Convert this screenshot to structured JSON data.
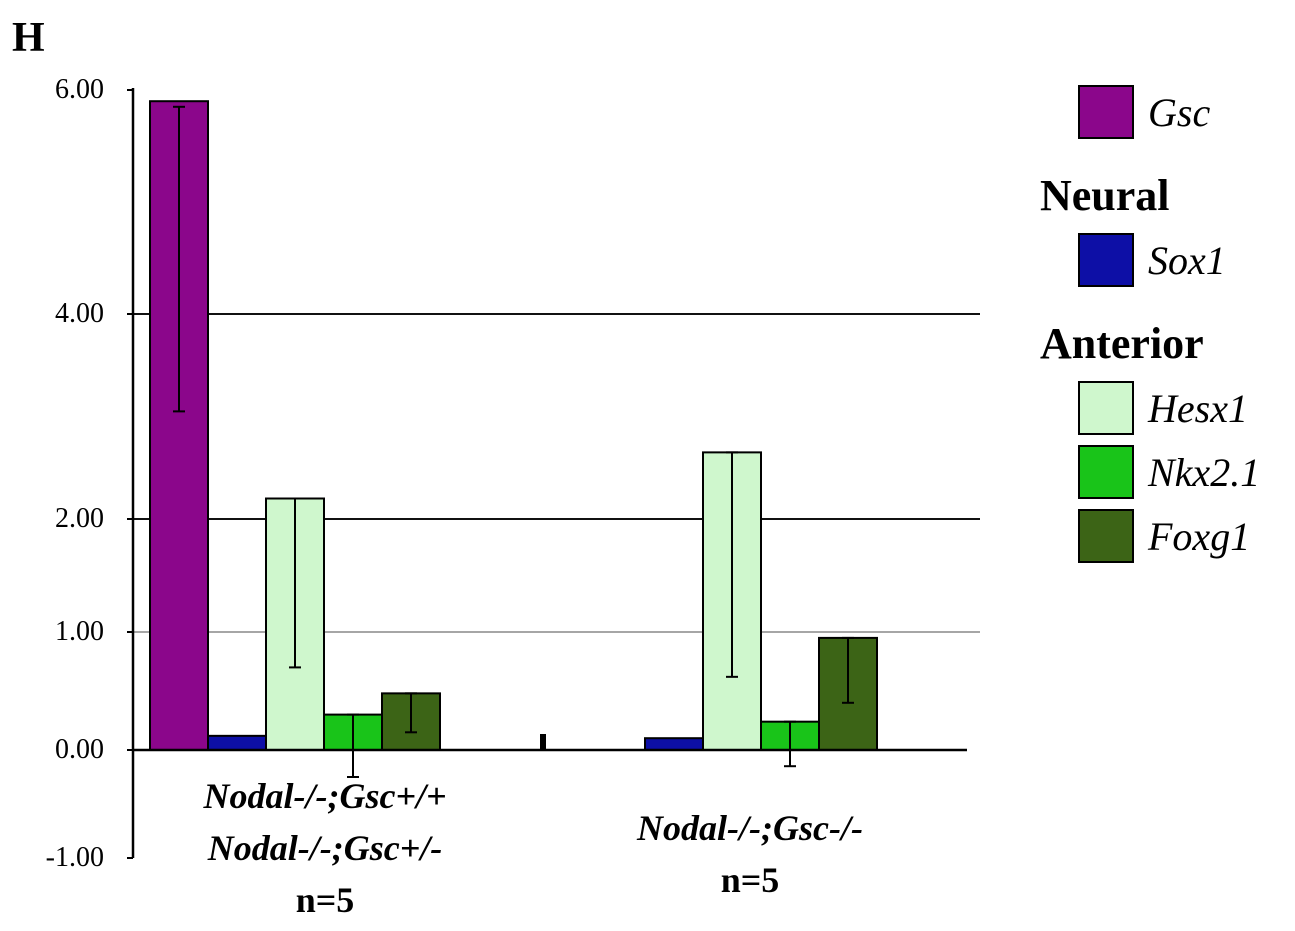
{
  "panel_label": "H",
  "chart_data": {
    "type": "bar",
    "categories": [
      [
        "Nodal-/-;Gsc+/+",
        "Nodal-/-;Gsc+/-",
        "n=5"
      ],
      [
        "Nodal-/-;Gsc-/-",
        "n=5"
      ]
    ],
    "series": [
      {
        "name": "Gsc",
        "color": "#8b068b",
        "values": [
          5.9,
          null
        ],
        "err_low": [
          3.05,
          null
        ],
        "err_high": [
          5.85,
          null
        ]
      },
      {
        "name": "Sox1",
        "color": "#0d0fa6",
        "values": [
          0.12,
          0.1
        ],
        "err_low": [
          null,
          null
        ],
        "err_high": [
          null,
          null
        ]
      },
      {
        "name": "Hesx1",
        "color": "#cff7cd",
        "values": [
          2.2,
          2.65
        ],
        "err_low": [
          0.7,
          0.62
        ],
        "err_high": [
          2.2,
          2.65
        ]
      },
      {
        "name": "Nkx2.1",
        "color": "#19c419",
        "values": [
          0.3,
          0.24
        ],
        "err_low": [
          -0.25,
          -0.15
        ],
        "err_high": [
          0.3,
          0.24
        ]
      },
      {
        "name": "Foxg1",
        "color": "#3c6416",
        "values": [
          0.48,
          0.95
        ],
        "err_low": [
          0.15,
          0.4
        ],
        "err_high": [
          0.48,
          0.95
        ]
      }
    ],
    "y_ticks": [
      {
        "value": -1,
        "label": "-1.00"
      },
      {
        "value": 0,
        "label": "0.00"
      },
      {
        "value": 1,
        "label": "1.00"
      },
      {
        "value": 2,
        "label": "2.00"
      },
      {
        "value": 4,
        "label": "4.00"
      },
      {
        "value": 6,
        "label": "6.00"
      }
    ],
    "gridlines": [
      1,
      2,
      4
    ],
    "ylim": [
      -1,
      6
    ],
    "xlabel": "",
    "ylabel": ""
  },
  "legend": {
    "top_item": "Gsc",
    "groups": [
      {
        "heading": "Neural",
        "items": [
          "Sox1"
        ]
      },
      {
        "heading": "Anterior",
        "items": [
          "Hesx1",
          "Nkx2.1",
          "Foxg1"
        ]
      }
    ]
  }
}
